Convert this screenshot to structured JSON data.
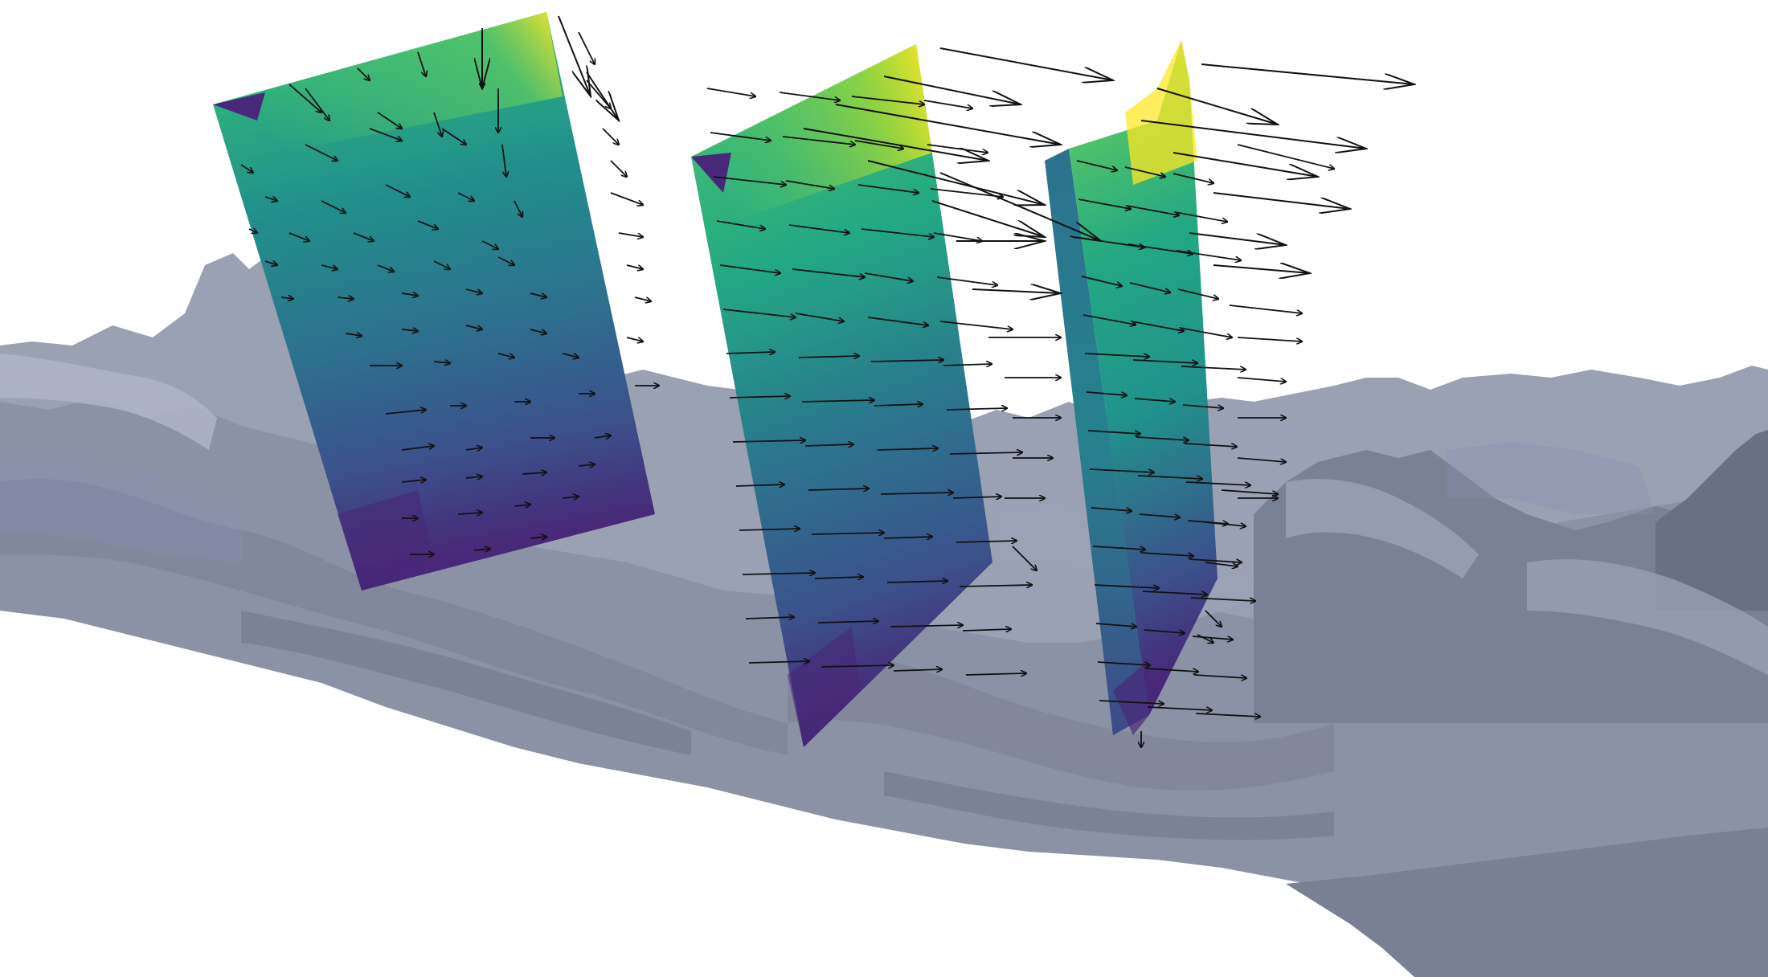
{
  "scene": {
    "type": "3d-visualization",
    "description_free": true,
    "background_color": "#ffffff",
    "terrain": {
      "color_light": "#a7aebd",
      "color_mid": "#8a90a3",
      "color_dark": "#5f667a",
      "color_blue_tint": "#7a7fa6"
    },
    "colormap": [
      "#440154",
      "#3b528b",
      "#21918c",
      "#5ec962",
      "#fde725"
    ],
    "arrow_color": "#111111",
    "slices": [
      {
        "name": "slice-1",
        "vectors": "mixed-down-right"
      },
      {
        "name": "slice-2",
        "vectors": "rightward"
      },
      {
        "name": "slice-3",
        "vectors": "rightward"
      }
    ]
  }
}
